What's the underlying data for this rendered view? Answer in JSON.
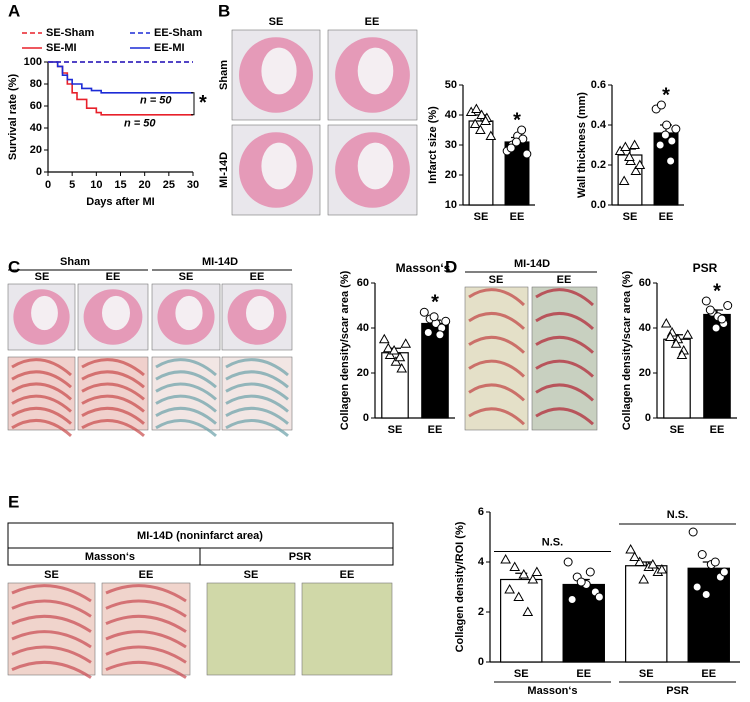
{
  "panel_labels": [
    "A",
    "B",
    "C",
    "D",
    "E"
  ],
  "images": {
    "B": {
      "cols": [
        "SE",
        "EE"
      ],
      "rows": [
        "Sham",
        "MI-14D"
      ]
    },
    "C": {
      "groups": [
        "Sham",
        "MI-14D"
      ],
      "cols": [
        "SE",
        "EE",
        "SE",
        "EE"
      ]
    },
    "D": {
      "group": "MI-14D",
      "cols": [
        "SE",
        "EE"
      ]
    },
    "E": {
      "title": "MI-14D (noninfarct area)",
      "groups": [
        "Masson‘s",
        "PSR"
      ],
      "cols": [
        "SE",
        "EE",
        "SE",
        "EE"
      ]
    }
  },
  "chart_data": [
    {
      "type": "line",
      "step": true,
      "xlabel": "Days after MI",
      "ylabel": "Survival rate (%)",
      "xlim": [
        0,
        30
      ],
      "xticks": [
        0,
        5,
        10,
        15,
        20,
        25,
        30
      ],
      "ylim": [
        0,
        100
      ],
      "yticks": [
        0,
        20,
        40,
        60,
        80,
        100
      ],
      "series": [
        {
          "name": "SE-Sham",
          "color": "#e8202a",
          "dash": true,
          "x": [
            0,
            30
          ],
          "values": [
            100,
            100
          ]
        },
        {
          "name": "EE-Sham",
          "color": "#1c2bd6",
          "dash": true,
          "x": [
            0,
            30
          ],
          "values": [
            100,
            100
          ]
        },
        {
          "name": "SE-MI",
          "color": "#e8202a",
          "dash": false,
          "x": [
            0,
            2,
            3,
            4,
            5,
            6,
            8,
            10,
            11,
            30
          ],
          "values": [
            100,
            96,
            90,
            80,
            72,
            66,
            58,
            54,
            52,
            52
          ]
        },
        {
          "name": "EE-MI",
          "color": "#1c2bd6",
          "dash": false,
          "x": [
            0,
            2,
            3,
            4,
            5,
            7,
            9,
            11,
            30
          ],
          "values": [
            100,
            96,
            88,
            84,
            80,
            76,
            74,
            72,
            72
          ]
        }
      ],
      "annotations": [
        "n = 50",
        "n = 50",
        "*"
      ]
    },
    {
      "type": "bar",
      "ylabel": "Infarct size (%)",
      "categories": [
        "SE",
        "EE"
      ],
      "values": [
        38,
        31
      ],
      "errors": [
        2,
        1.5
      ],
      "colors": [
        "#ffffff",
        "#000000"
      ],
      "markers": [
        "triangle",
        "circle"
      ],
      "points": [
        [
          41,
          42,
          40,
          39,
          37,
          35,
          38,
          33
        ],
        [
          28,
          30,
          33,
          32,
          29,
          31,
          35,
          27
        ]
      ],
      "ylim": [
        10,
        50
      ],
      "yticks": [
        10,
        20,
        30,
        40,
        50
      ],
      "annotations": [
        "*"
      ]
    },
    {
      "type": "bar",
      "ylabel": "Wall thickness (mm)",
      "categories": [
        "SE",
        "EE"
      ],
      "values": [
        0.25,
        0.36
      ],
      "errors": [
        0.03,
        0.04
      ],
      "colors": [
        "#ffffff",
        "#000000"
      ],
      "markers": [
        "triangle",
        "circle"
      ],
      "points": [
        [
          0.27,
          0.29,
          0.22,
          0.17,
          0.12,
          0.24,
          0.3,
          0.2
        ],
        [
          0.48,
          0.5,
          0.4,
          0.32,
          0.3,
          0.35,
          0.22,
          0.38
        ]
      ],
      "ylim": [
        0,
        0.6
      ],
      "yticks": [
        {
          "value": 0,
          "label": "0.0"
        },
        0.2,
        0.4,
        0.6
      ],
      "annotations": [
        "*"
      ]
    },
    {
      "type": "bar",
      "title": "Masson‘s",
      "ylabel": "Collagen density/scar area (%)",
      "categories": [
        "SE",
        "EE"
      ],
      "values": [
        29,
        42
      ],
      "errors": [
        2,
        1.5
      ],
      "colors": [
        "#ffffff",
        "#000000"
      ],
      "markers": [
        "triangle",
        "circle"
      ],
      "points": [
        [
          35,
          28,
          25,
          22,
          31,
          30,
          27,
          33
        ],
        [
          47,
          44,
          42,
          40,
          38,
          45,
          37,
          43
        ]
      ],
      "ylim": [
        0,
        60
      ],
      "yticks": [
        0,
        20,
        40,
        60
      ],
      "annotations": [
        "*"
      ]
    },
    {
      "type": "bar",
      "title": "PSR",
      "ylabel": "Collagen density/scar area (%)",
      "categories": [
        "SE",
        "EE"
      ],
      "values": [
        35,
        46
      ],
      "errors": [
        2,
        2
      ],
      "colors": [
        "#ffffff",
        "#000000"
      ],
      "markers": [
        "triangle",
        "circle"
      ],
      "points": [
        [
          42,
          38,
          35,
          30,
          36,
          33,
          28,
          37
        ],
        [
          52,
          47,
          45,
          42,
          48,
          40,
          44,
          50
        ]
      ],
      "ylim": [
        0,
        60
      ],
      "yticks": [
        0,
        20,
        40,
        60
      ],
      "annotations": [
        "*"
      ]
    },
    {
      "type": "bar",
      "ylabel": "Collagen density/ROI (%)",
      "categories": [
        "SE",
        "EE",
        "SE",
        "EE"
      ],
      "groups": [
        "Masson‘s",
        "PSR"
      ],
      "values": [
        3.3,
        3.1,
        3.85,
        3.75
      ],
      "errors": [
        0.25,
        0.2,
        0.15,
        0.25
      ],
      "colors": [
        "#ffffff",
        "#000000",
        "#ffffff",
        "#000000"
      ],
      "markers": [
        "triangle",
        "circle",
        "triangle",
        "circle"
      ],
      "points": [
        [
          4.1,
          3.8,
          3.5,
          3.3,
          2.9,
          2.6,
          2.0,
          3.6
        ],
        [
          4.0,
          3.4,
          3.1,
          2.8,
          2.5,
          3.2,
          3.6,
          2.6
        ],
        [
          4.5,
          4.0,
          3.8,
          3.6,
          4.2,
          3.3,
          3.9,
          3.7
        ],
        [
          5.2,
          4.3,
          3.9,
          3.4,
          3.0,
          2.7,
          4.0,
          3.6
        ]
      ],
      "ylim": [
        0,
        6
      ],
      "yticks": [
        0,
        2,
        4,
        6
      ],
      "annotations": [
        "N.S.",
        "N.S."
      ]
    }
  ]
}
